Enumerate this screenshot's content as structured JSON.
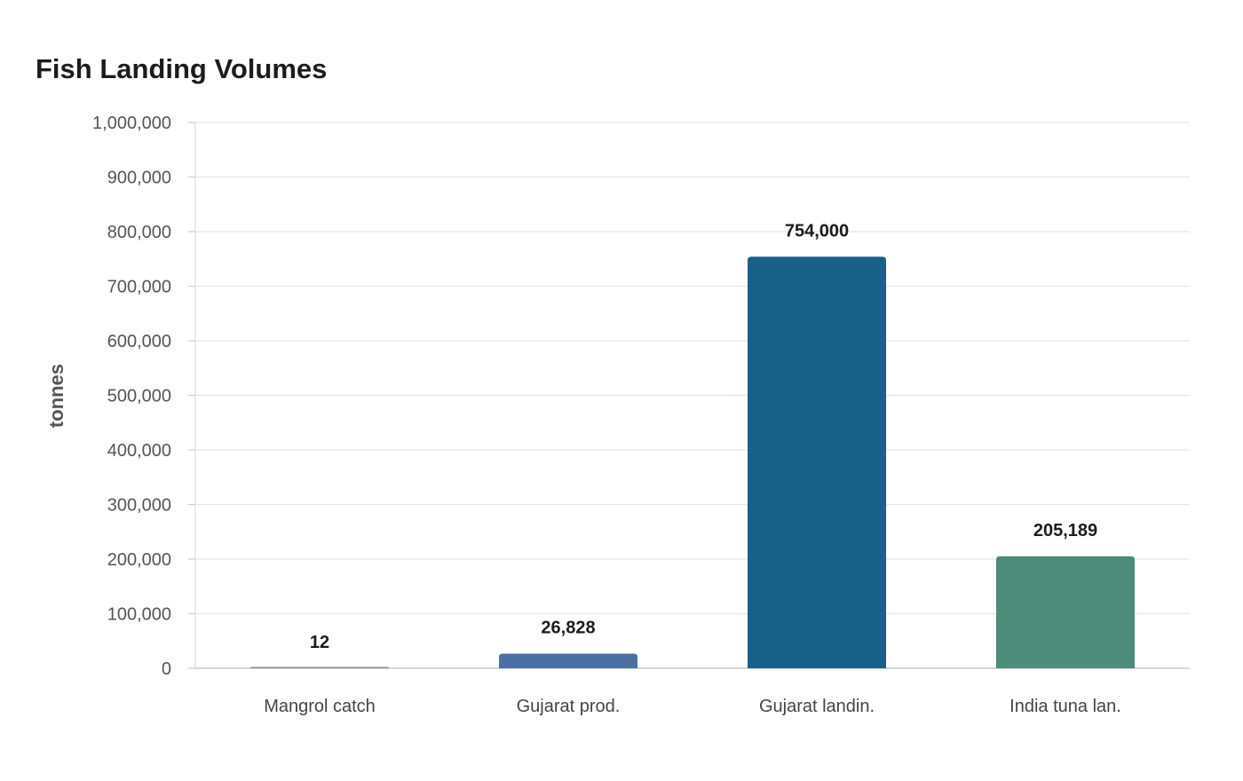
{
  "chart_data": {
    "type": "bar",
    "title": "Fish Landing Volumes",
    "xlabel": "",
    "ylabel": "tonnes",
    "ylim": [
      0,
      1000000
    ],
    "yticks": [
      0,
      100000,
      200000,
      300000,
      400000,
      500000,
      600000,
      700000,
      800000,
      900000,
      1000000
    ],
    "grid": true,
    "legend": "none",
    "categories": [
      "Mangrol catch",
      "Gujarat prod.",
      "Gujarat landin.",
      "India tuna lan."
    ],
    "values": [
      12,
      26828,
      754000,
      205189
    ],
    "value_labels": [
      "12",
      "26,828",
      "754,000",
      "205,189"
    ],
    "colors": [
      "#8a8a8a",
      "#4a6fa5",
      "#186087",
      "#4e8c7a"
    ]
  }
}
